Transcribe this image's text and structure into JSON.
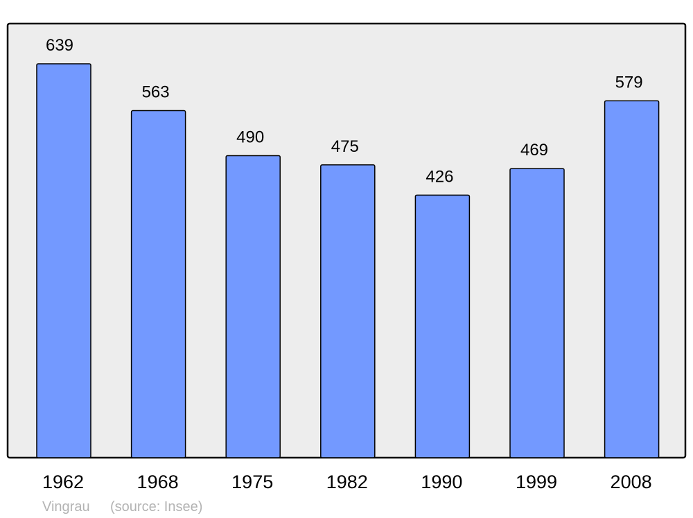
{
  "chart_data": {
    "type": "bar",
    "categories": [
      "1962",
      "1968",
      "1975",
      "1982",
      "1990",
      "1999",
      "2008"
    ],
    "values": [
      639,
      563,
      490,
      475,
      426,
      469,
      579
    ],
    "title": "",
    "xlabel": "",
    "ylabel": "",
    "ylim": [
      0,
      639
    ],
    "grid": false,
    "data_labels": true,
    "colors": {
      "bar": "#7399ff",
      "plot_background": "#ededed",
      "border": "#000000"
    }
  },
  "caption": {
    "place": "Vingrau",
    "source": "(source: Insee)"
  }
}
